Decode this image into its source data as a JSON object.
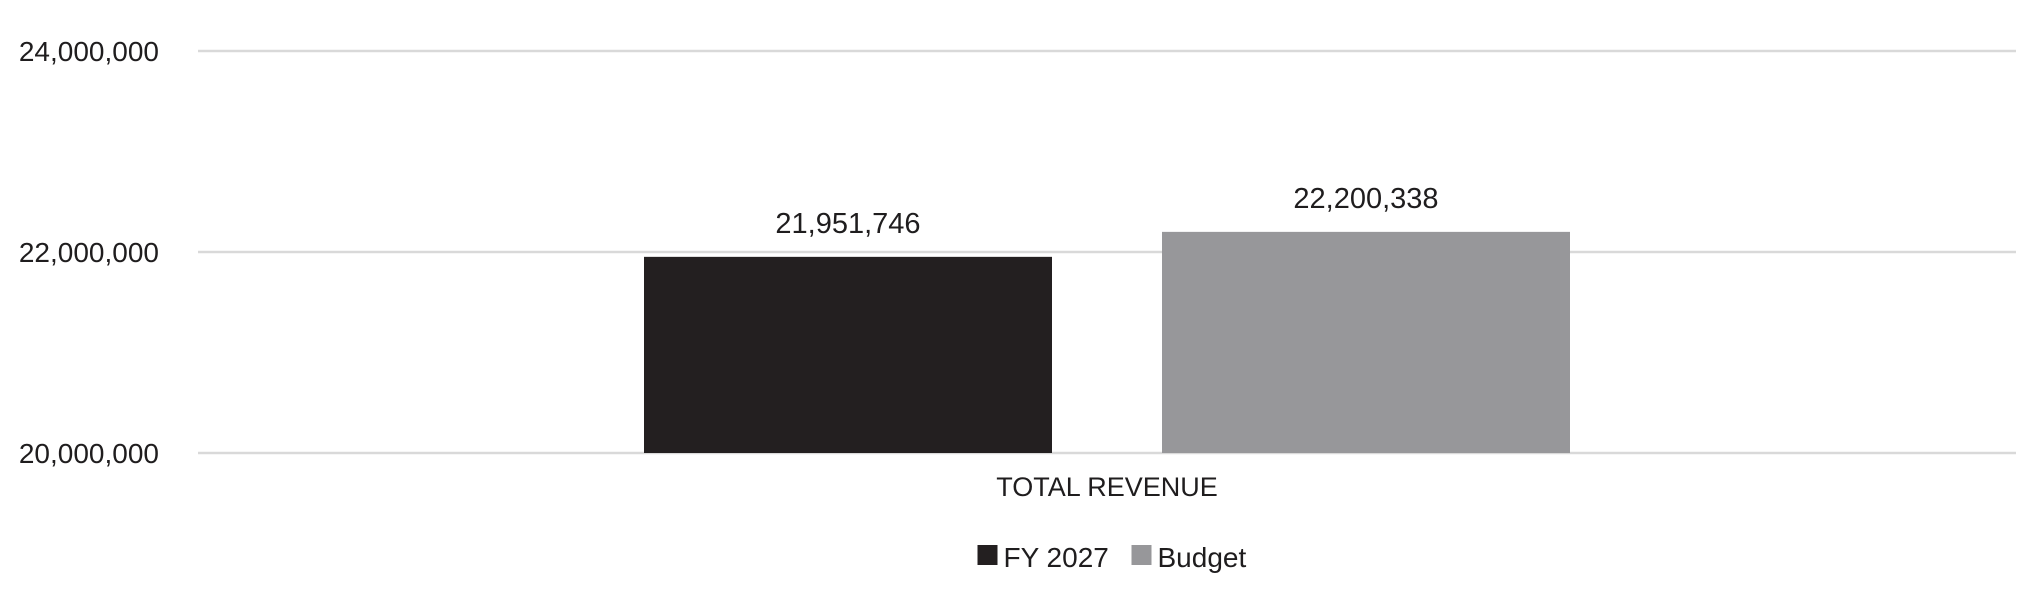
{
  "chart_data": {
    "type": "bar",
    "title": "",
    "xlabel": "",
    "ylabel": "",
    "categories": [
      "TOTAL REVENUE"
    ],
    "series": [
      {
        "name": "FY 2027",
        "values": [
          21951746
        ],
        "color": "#231f20",
        "data_label": "21,951,746"
      },
      {
        "name": "Budget",
        "values": [
          22200338
        ],
        "color": "#97979a",
        "data_label": "22,200,338"
      }
    ],
    "ylim": [
      20000000,
      24000000
    ],
    "yticks": [
      {
        "value": 20000000,
        "label": "20,000,000"
      },
      {
        "value": 22000000,
        "label": "22,000,000"
      },
      {
        "value": 24000000,
        "label": "24,000,000"
      }
    ],
    "grid": true,
    "legend": "bottom-center"
  }
}
